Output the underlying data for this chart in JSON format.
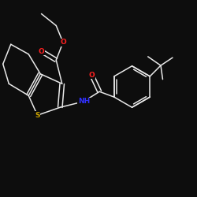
{
  "background_color": "#0d0d0d",
  "bond_color": "#e8e8e8",
  "atom_colors": {
    "O": "#ff2020",
    "N": "#3030ff",
    "S": "#c8a000",
    "C": "#e8e8e8"
  },
  "font_size": 6.5,
  "bond_width": 1.1,
  "figsize": [
    2.5,
    2.5
  ],
  "dpi": 100
}
